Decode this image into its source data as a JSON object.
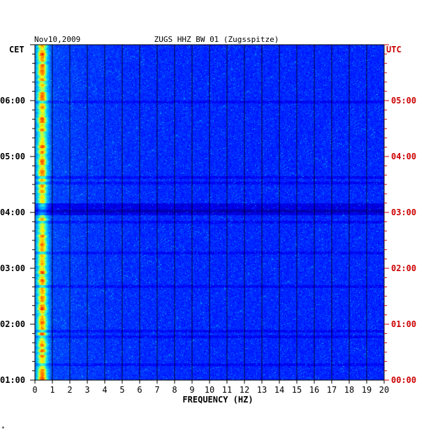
{
  "chart_data": {
    "type": "heatmap",
    "date": "Nov10,2009",
    "title": "ZUGS HHZ BW 01 (Zugsspitze)",
    "left_timezone": "CET",
    "right_timezone": "UTC",
    "xlabel": "FREQUENCY (HZ)",
    "xlim": [
      0,
      20
    ],
    "x_ticks": [
      "0",
      "1",
      "2",
      "3",
      "4",
      "5",
      "6",
      "7",
      "8",
      "9",
      "10",
      "11",
      "12",
      "13",
      "14",
      "15",
      "16",
      "17",
      "18",
      "19",
      "20"
    ],
    "left_time_ticks": [
      "01:00",
      "02:00",
      "03:00",
      "04:00",
      "05:00",
      "06:00"
    ],
    "right_time_ticks": [
      "00:00",
      "01:00",
      "02:00",
      "03:00",
      "04:00",
      "05:00"
    ],
    "time_range_cet": [
      "01:00",
      "07:00"
    ],
    "colormap": [
      "#00008b",
      "#0000ff",
      "#0060ff",
      "#00c0ff",
      "#40ffc0",
      "#ffff00",
      "#ff8000",
      "#ff0000"
    ],
    "left_axis_color": "#000000",
    "right_axis_color": "#cc0000",
    "footnote": "*"
  }
}
